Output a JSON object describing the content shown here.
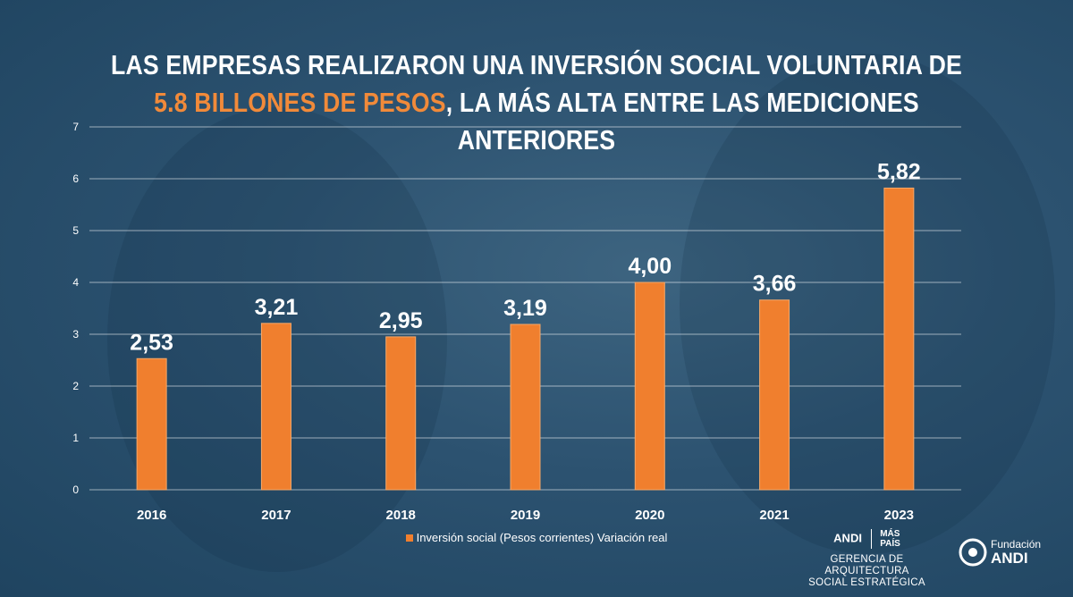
{
  "title": {
    "part1": "LAS EMPRESAS REALIZARON UNA INVERSIÓN SOCIAL VOLUNTARIA DE ",
    "highlight1": "5.8 BILLONES DE PESOS",
    "part2": ", LA MÁS ALTA ENTRE LAS MEDICIONES ANTERIORES"
  },
  "chart_data": {
    "type": "bar",
    "categories": [
      "2016",
      "2017",
      "2018",
      "2019",
      "2020",
      "2021",
      "2023"
    ],
    "values": [
      2.53,
      3.21,
      2.95,
      3.19,
      4.0,
      3.66,
      5.82
    ],
    "value_labels": [
      "2,53",
      "3,21",
      "2,95",
      "3,19",
      "4,00",
      "3,66",
      "5,82"
    ],
    "ylim": [
      0,
      7
    ],
    "yticks": [
      0,
      1,
      2,
      3,
      4,
      5,
      6,
      7
    ],
    "grid": true,
    "legend": "Inversión social (Pesos corrientes) Variación real",
    "legend_position": "bottom",
    "bar_color": "#f07f2e"
  },
  "logos": {
    "andi_left": "ANDI",
    "mas": "MÁS",
    "pais": "PAÍS",
    "gerencia_line1": "GERENCIA DE ARQUITECTURA",
    "gerencia_line2": "SOCIAL ESTRATÉGICA",
    "fundacion": "Fundación",
    "fundacion_andi": "ANDI"
  }
}
